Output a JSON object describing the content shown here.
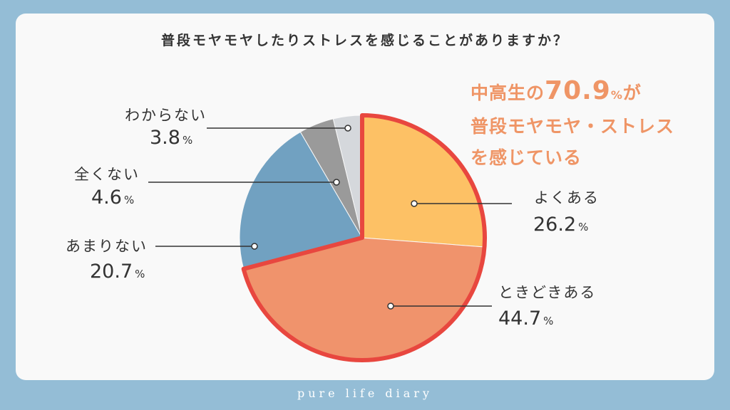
{
  "title": "普段モヤモヤしたりストレスを感じることがありますか？",
  "footer": "pure life diary",
  "highlight": {
    "line1_prefix": "中高生の",
    "line1_value": "70.9",
    "line1_unit": "%",
    "line1_suffix": "が",
    "line2": "普段モヤモヤ・ストレス",
    "line3": "を感じている"
  },
  "colors": {
    "background": "#94bdd6",
    "card": "#f9f9f9",
    "accent_text": "#ef9566",
    "outline": "#e8473f"
  },
  "chart_data": {
    "type": "pie",
    "start": "12 o'clock, clockwise",
    "unit": "%",
    "slices": [
      {
        "label": "よくある",
        "value": 26.2,
        "color": "#fdc165",
        "highlighted": true
      },
      {
        "label": "ときどきある",
        "value": 44.7,
        "color": "#f0936c",
        "highlighted": true
      },
      {
        "label": "あまりない",
        "value": 20.7,
        "color": "#71a1c1",
        "highlighted": false
      },
      {
        "label": "全くない",
        "value": 4.6,
        "color": "#9a9a9a",
        "highlighted": false
      },
      {
        "label": "わからない",
        "value": 3.8,
        "color": "#d5d8dc",
        "highlighted": false
      }
    ]
  }
}
